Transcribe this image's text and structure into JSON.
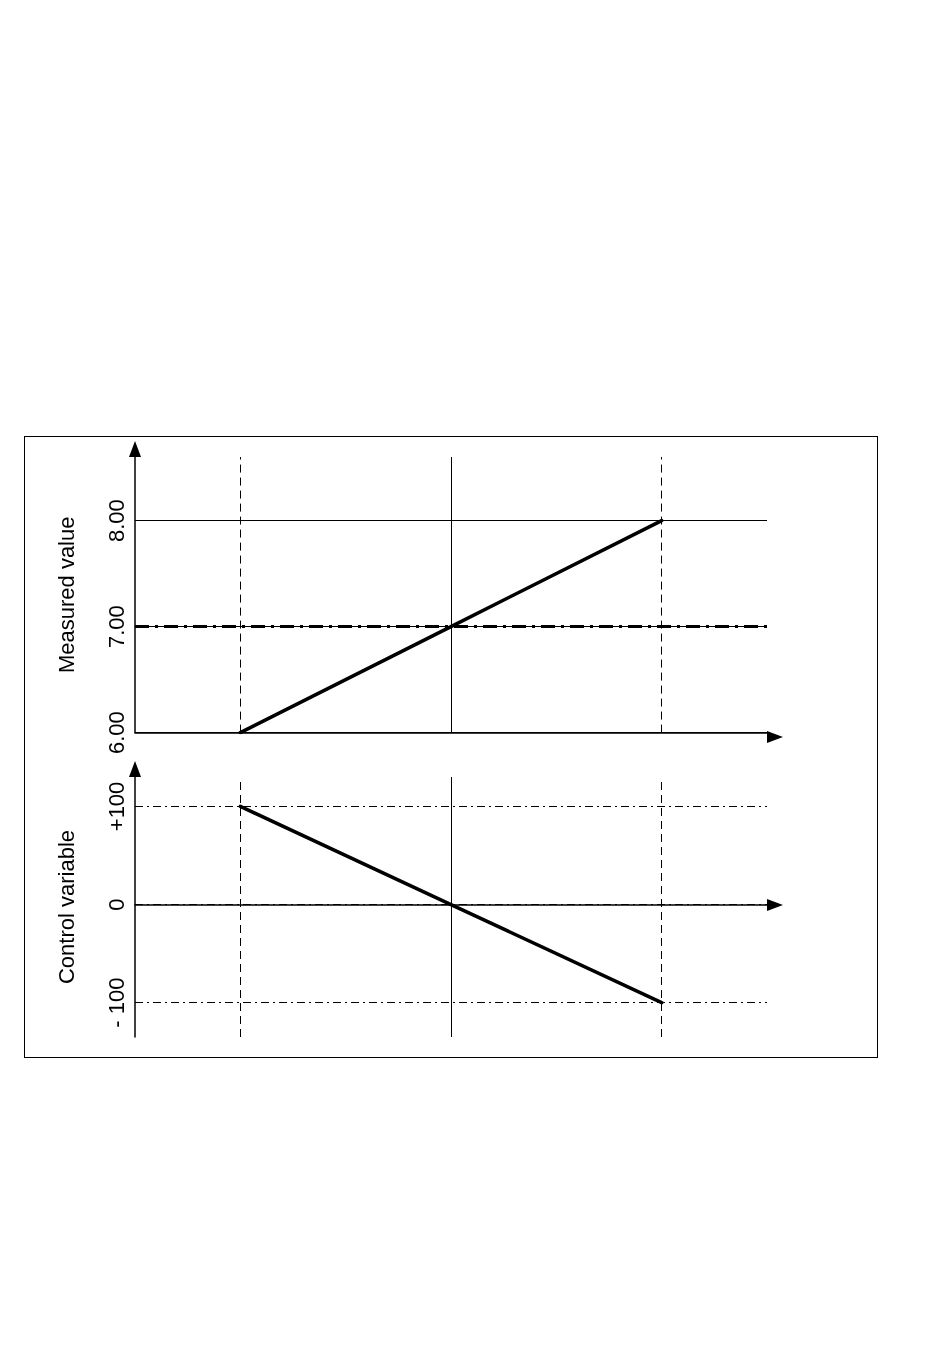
{
  "chart_data": [
    {
      "type": "line",
      "ylabel": "Measured value",
      "categories": [
        null,
        null,
        null
      ],
      "values": [
        6,
        7,
        8
      ],
      "color": "#000000",
      "ylim": [
        6,
        8.6
      ],
      "yticks": [
        {
          "value": 6,
          "label": "6.00"
        },
        {
          "value": 7,
          "label": "7.00"
        },
        {
          "value": 8,
          "label": "8.00"
        }
      ],
      "grid": true,
      "tick_labels": "y",
      "marker": "none",
      "line_style": "solid",
      "ref_lines": [
        {
          "axis": "y",
          "value": 7,
          "color": "#000000",
          "line_style": "dashed"
        }
      ]
    },
    {
      "type": "line",
      "ylabel": "Control variable",
      "categories": [
        null,
        null,
        null
      ],
      "values": [
        100,
        0,
        -100
      ],
      "color": "#000000",
      "ylim": [
        -135,
        130
      ],
      "yticks": [
        {
          "value": -100,
          "label": "- 100"
        },
        {
          "value": 0,
          "label": "0"
        },
        {
          "value": 100,
          "label": "+100"
        }
      ],
      "grid": true,
      "tick_labels": "y",
      "marker": "none",
      "line_style": "solid"
    }
  ]
}
